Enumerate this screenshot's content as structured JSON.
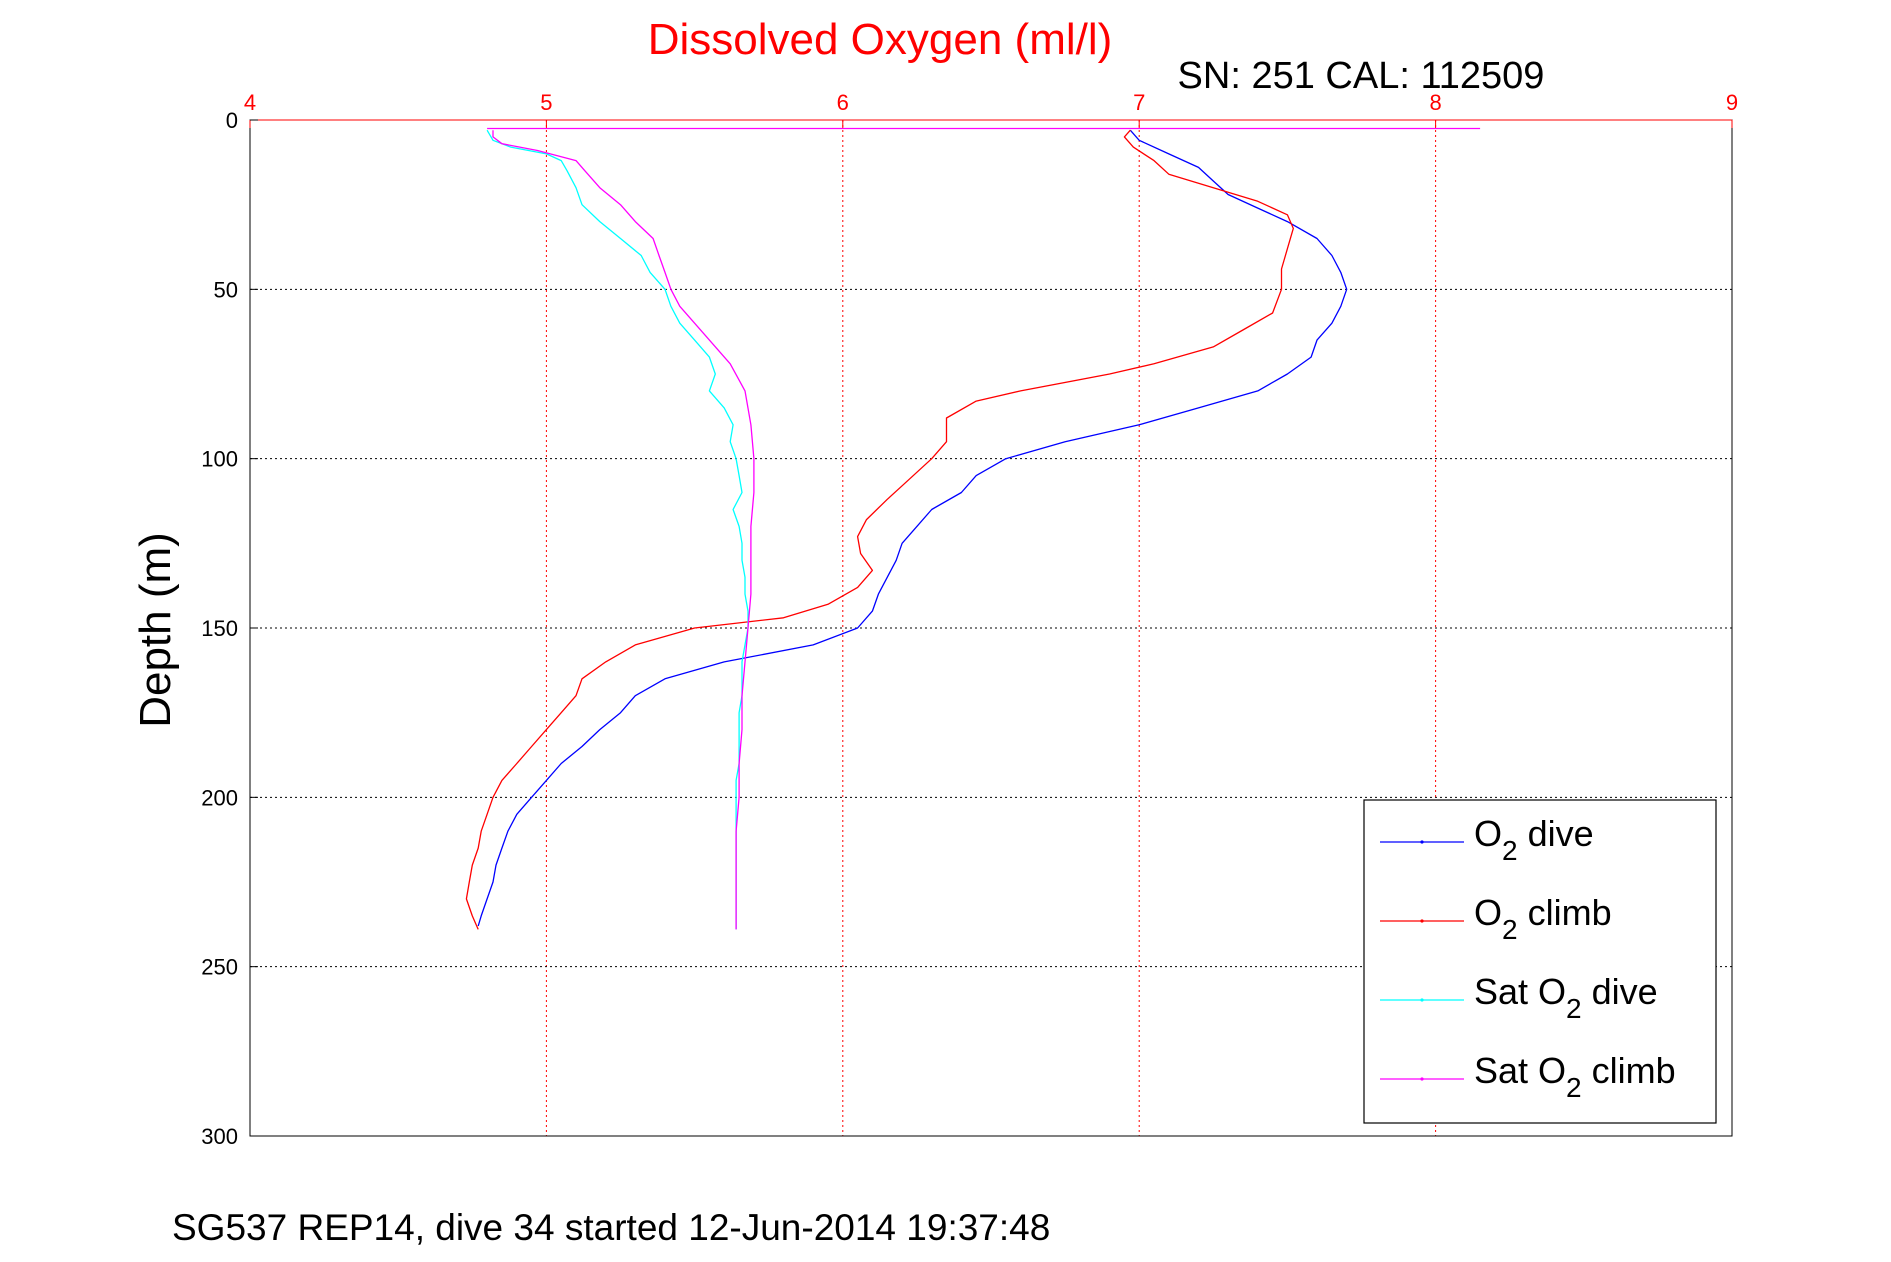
{
  "chart_data": {
    "type": "line",
    "title": "Dissolved Oxygen (ml/l)",
    "subtitle": "SN: 251  CAL: 112509",
    "ylabel": "Depth (m)",
    "footer": "SG537 REP14, dive 34 started 12-Jun-2014 19:37:48",
    "xlim": [
      4,
      9
    ],
    "ylim": [
      0,
      300
    ],
    "y_reversed": true,
    "x_axis_position": "top",
    "x_ticks": [
      4,
      5,
      6,
      7,
      8,
      9
    ],
    "y_ticks": [
      0,
      50,
      100,
      150,
      200,
      250,
      300
    ],
    "grid": true,
    "legend": "bottom-right",
    "colors": {
      "title": "#ff0000",
      "x_axis": "#ff0000",
      "y_axis": "#000000"
    },
    "series": [
      {
        "name": "O2 dive",
        "legend_base": "O",
        "legend_sub": "2",
        "legend_rest": " dive",
        "color": "#0000ff",
        "points": [
          [
            6.97,
            3
          ],
          [
            7.0,
            6
          ],
          [
            7.1,
            10
          ],
          [
            7.2,
            14
          ],
          [
            7.25,
            18
          ],
          [
            7.3,
            22
          ],
          [
            7.4,
            26
          ],
          [
            7.5,
            30
          ],
          [
            7.6,
            35
          ],
          [
            7.65,
            40
          ],
          [
            7.68,
            45
          ],
          [
            7.7,
            50
          ],
          [
            7.68,
            55
          ],
          [
            7.65,
            60
          ],
          [
            7.6,
            65
          ],
          [
            7.58,
            70
          ],
          [
            7.5,
            75
          ],
          [
            7.4,
            80
          ],
          [
            7.2,
            85
          ],
          [
            7.0,
            90
          ],
          [
            6.75,
            95
          ],
          [
            6.55,
            100
          ],
          [
            6.45,
            105
          ],
          [
            6.4,
            110
          ],
          [
            6.3,
            115
          ],
          [
            6.25,
            120
          ],
          [
            6.2,
            125
          ],
          [
            6.18,
            130
          ],
          [
            6.15,
            135
          ],
          [
            6.12,
            140
          ],
          [
            6.1,
            145
          ],
          [
            6.05,
            150
          ],
          [
            5.9,
            155
          ],
          [
            5.6,
            160
          ],
          [
            5.4,
            165
          ],
          [
            5.3,
            170
          ],
          [
            5.25,
            175
          ],
          [
            5.18,
            180
          ],
          [
            5.12,
            185
          ],
          [
            5.05,
            190
          ],
          [
            5.0,
            195
          ],
          [
            4.95,
            200
          ],
          [
            4.9,
            205
          ],
          [
            4.87,
            210
          ],
          [
            4.85,
            215
          ],
          [
            4.83,
            220
          ],
          [
            4.82,
            225
          ],
          [
            4.8,
            230
          ],
          [
            4.78,
            235
          ],
          [
            4.77,
            238
          ]
        ]
      },
      {
        "name": "O2 climb",
        "legend_base": "O",
        "legend_sub": "2",
        "legend_rest": " climb",
        "color": "#ff0000",
        "points": [
          [
            4.77,
            239
          ],
          [
            4.75,
            235
          ],
          [
            4.73,
            230
          ],
          [
            4.74,
            225
          ],
          [
            4.75,
            220
          ],
          [
            4.77,
            215
          ],
          [
            4.78,
            210
          ],
          [
            4.8,
            205
          ],
          [
            4.82,
            200
          ],
          [
            4.85,
            195
          ],
          [
            4.9,
            190
          ],
          [
            4.95,
            185
          ],
          [
            5.0,
            180
          ],
          [
            5.05,
            175
          ],
          [
            5.1,
            170
          ],
          [
            5.12,
            165
          ],
          [
            5.2,
            160
          ],
          [
            5.3,
            155
          ],
          [
            5.5,
            150
          ],
          [
            5.8,
            147
          ],
          [
            5.95,
            143
          ],
          [
            6.05,
            138
          ],
          [
            6.1,
            133
          ],
          [
            6.06,
            128
          ],
          [
            6.05,
            123
          ],
          [
            6.08,
            118
          ],
          [
            6.15,
            112
          ],
          [
            6.2,
            108
          ],
          [
            6.3,
            100
          ],
          [
            6.35,
            95
          ],
          [
            6.35,
            88
          ],
          [
            6.45,
            83
          ],
          [
            6.6,
            80
          ],
          [
            6.9,
            75
          ],
          [
            7.05,
            72
          ],
          [
            7.25,
            67
          ],
          [
            7.35,
            62
          ],
          [
            7.45,
            57
          ],
          [
            7.48,
            50
          ],
          [
            7.48,
            44
          ],
          [
            7.5,
            38
          ],
          [
            7.52,
            32
          ],
          [
            7.5,
            28
          ],
          [
            7.4,
            24
          ],
          [
            7.25,
            20
          ],
          [
            7.1,
            16
          ],
          [
            7.05,
            12
          ],
          [
            6.98,
            8
          ],
          [
            6.95,
            5
          ],
          [
            6.97,
            3
          ]
        ]
      },
      {
        "name": "Sat O2 dive",
        "legend_base": "Sat O",
        "legend_sub": "2",
        "legend_rest": " dive",
        "color": "#00ffff",
        "points": [
          [
            4.8,
            3
          ],
          [
            4.82,
            6
          ],
          [
            4.88,
            8
          ],
          [
            5.0,
            10
          ],
          [
            5.05,
            12
          ],
          [
            5.07,
            15
          ],
          [
            5.1,
            20
          ],
          [
            5.12,
            25
          ],
          [
            5.18,
            30
          ],
          [
            5.25,
            35
          ],
          [
            5.32,
            40
          ],
          [
            5.35,
            45
          ],
          [
            5.4,
            50
          ],
          [
            5.42,
            55
          ],
          [
            5.45,
            60
          ],
          [
            5.5,
            65
          ],
          [
            5.55,
            70
          ],
          [
            5.57,
            75
          ],
          [
            5.55,
            80
          ],
          [
            5.6,
            85
          ],
          [
            5.63,
            90
          ],
          [
            5.62,
            95
          ],
          [
            5.64,
            100
          ],
          [
            5.65,
            105
          ],
          [
            5.66,
            110
          ],
          [
            5.63,
            115
          ],
          [
            5.65,
            120
          ],
          [
            5.66,
            125
          ],
          [
            5.66,
            130
          ],
          [
            5.67,
            135
          ],
          [
            5.67,
            140
          ],
          [
            5.68,
            145
          ],
          [
            5.68,
            150
          ],
          [
            5.67,
            155
          ],
          [
            5.66,
            160
          ],
          [
            5.66,
            165
          ],
          [
            5.66,
            170
          ],
          [
            5.65,
            175
          ],
          [
            5.65,
            180
          ],
          [
            5.65,
            185
          ],
          [
            5.65,
            190
          ],
          [
            5.64,
            195
          ],
          [
            5.64,
            200
          ],
          [
            5.64,
            205
          ],
          [
            5.64,
            210
          ],
          [
            5.64,
            215
          ],
          [
            5.64,
            220
          ],
          [
            5.64,
            225
          ],
          [
            5.64,
            230
          ],
          [
            5.64,
            235
          ],
          [
            5.64,
            239
          ]
        ]
      },
      {
        "name": "Sat O2 climb",
        "legend_base": "Sat O",
        "legend_sub": "2",
        "legend_rest": " climb",
        "color": "#ff00ff",
        "points": [
          [
            5.64,
            239
          ],
          [
            5.64,
            230
          ],
          [
            5.64,
            220
          ],
          [
            5.64,
            210
          ],
          [
            5.65,
            200
          ],
          [
            5.65,
            190
          ],
          [
            5.66,
            180
          ],
          [
            5.66,
            170
          ],
          [
            5.67,
            160
          ],
          [
            5.68,
            150
          ],
          [
            5.69,
            140
          ],
          [
            5.69,
            130
          ],
          [
            5.69,
            120
          ],
          [
            5.7,
            110
          ],
          [
            5.7,
            100
          ],
          [
            5.69,
            90
          ],
          [
            5.67,
            80
          ],
          [
            5.62,
            72
          ],
          [
            5.55,
            65
          ],
          [
            5.5,
            60
          ],
          [
            5.45,
            55
          ],
          [
            5.42,
            50
          ],
          [
            5.4,
            45
          ],
          [
            5.38,
            40
          ],
          [
            5.36,
            35
          ],
          [
            5.3,
            30
          ],
          [
            5.25,
            25
          ],
          [
            5.18,
            20
          ],
          [
            5.13,
            15
          ],
          [
            5.1,
            12
          ],
          [
            4.97,
            9
          ],
          [
            4.85,
            7
          ],
          [
            4.82,
            5
          ],
          [
            4.82,
            3
          ]
        ]
      }
    ],
    "annotations": [
      {
        "name": "surface-spike",
        "color": "#ff00ff",
        "points": [
          [
            4.8,
            2.5
          ],
          [
            8.15,
            2.5
          ]
        ]
      }
    ]
  }
}
